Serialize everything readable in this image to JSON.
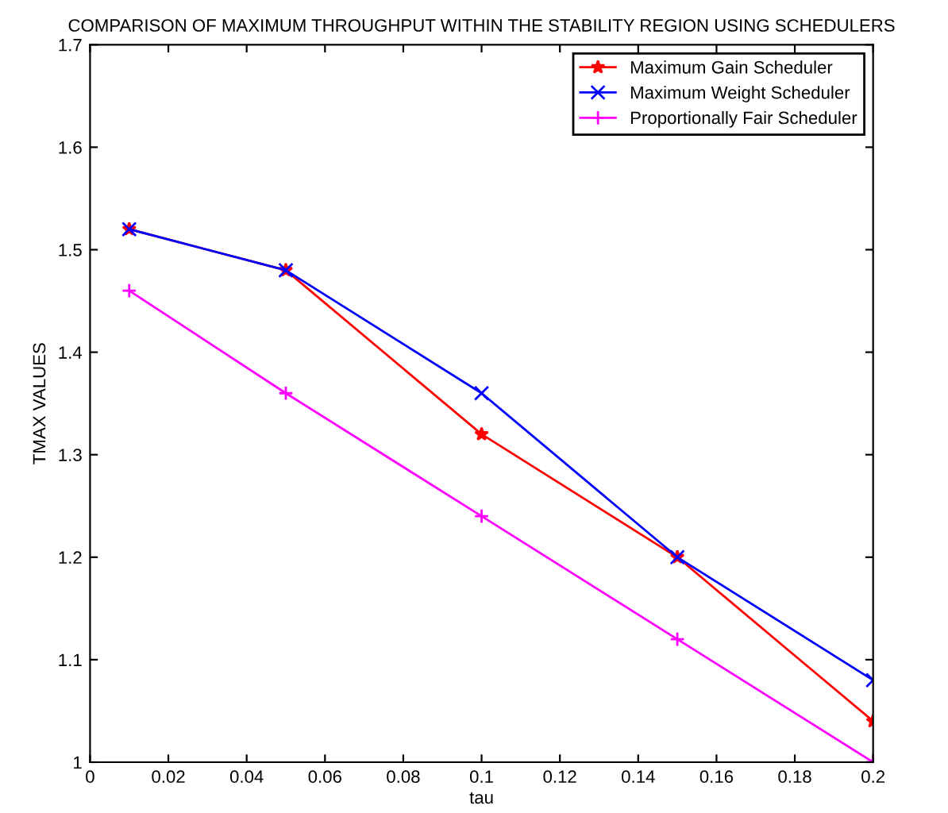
{
  "chart_data": {
    "type": "line",
    "title": "COMPARISON OF MAXIMUM THROUGHPUT WITHIN THE STABILITY REGION USING SCHEDULERS",
    "xlabel": "tau",
    "ylabel": "TMAX VALUES",
    "x": [
      0.01,
      0.05,
      0.1,
      0.15,
      0.2
    ],
    "series": [
      {
        "name": "Maximum Gain Scheduler",
        "color": "#ff0000",
        "marker": "star",
        "values": [
          1.52,
          1.48,
          1.32,
          1.2,
          1.04
        ]
      },
      {
        "name": "Maximum Weight Scheduler",
        "color": "#0000ff",
        "marker": "cross",
        "values": [
          1.52,
          1.48,
          1.36,
          1.2,
          1.08
        ]
      },
      {
        "name": "Proportionally Fair Scheduler",
        "color": "#ff00ff",
        "marker": "plus",
        "values": [
          1.46,
          1.36,
          1.24,
          1.12,
          1.0
        ]
      }
    ],
    "xlim": [
      0,
      0.2
    ],
    "xticks": [
      0,
      0.02,
      0.04,
      0.06,
      0.08,
      0.1,
      0.12,
      0.14,
      0.16,
      0.18,
      0.2
    ],
    "ylim": [
      1,
      1.7
    ],
    "yticks": [
      1,
      1.1,
      1.2,
      1.3,
      1.4,
      1.5,
      1.6,
      1.7
    ],
    "grid": false,
    "legend": "top right",
    "line_style": "solid"
  }
}
